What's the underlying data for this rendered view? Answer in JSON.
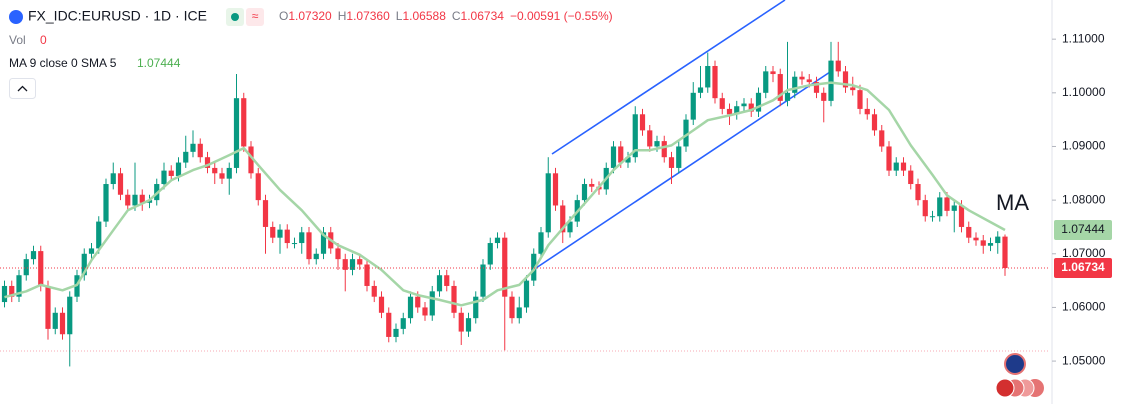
{
  "header": {
    "symbol": "FX_IDC:EURUSD · 1D · ICE",
    "legend": [
      {
        "key": "O",
        "value": "1.07320"
      },
      {
        "key": "H",
        "value": "1.07360"
      },
      {
        "key": "L",
        "value": "1.06588"
      },
      {
        "key": "C",
        "value": "1.06734"
      }
    ],
    "change": "−0.00591 (−0.55%)",
    "vol_label": "Vol",
    "vol_value": "0",
    "ma_label": "MA 9 close 0 SMA 5",
    "ma_value": "1.07444"
  },
  "chart_data": {
    "type": "candlestick",
    "open": [
      1.061,
      1.064,
      1.062,
      1.066,
      1.069,
      1.0705,
      1.064,
      1.056,
      1.059,
      1.055,
      1.062,
      1.066,
      1.07,
      1.071,
      1.076,
      1.083,
      1.085,
      1.081,
      1.079,
      1.081,
      1.0795,
      1.08,
      1.083,
      1.0855,
      1.0845,
      1.087,
      1.089,
      1.0905,
      1.088,
      1.086,
      1.085,
      1.084,
      1.086,
      1.099,
      1.09,
      1.085,
      1.08,
      1.075,
      1.073,
      1.0745,
      1.072,
      1.072,
      1.074,
      1.069,
      1.07,
      1.074,
      1.071,
      1.069,
      1.067,
      1.069,
      1.068,
      1.064,
      1.062,
      1.059,
      1.0545,
      1.056,
      1.058,
      1.062,
      1.06,
      1.0585,
      1.063,
      1.066,
      1.064,
      1.059,
      1.0555,
      1.058,
      1.062,
      1.068,
      1.072,
      1.073,
      1.062,
      1.058,
      1.06,
      1.065,
      1.07,
      1.074,
      1.085,
      1.079,
      1.074,
      1.076,
      1.08,
      1.083,
      1.0825,
      1.082,
      1.086,
      1.09,
      1.087,
      1.088,
      1.096,
      1.093,
      1.09,
      1.091,
      1.088,
      1.086,
      1.09,
      1.095,
      1.1,
      1.101,
      1.105,
      1.099,
      1.097,
      1.096,
      1.0975,
      1.098,
      1.0965,
      1.1,
      1.104,
      1.1035,
      1.0985,
      1.1,
      1.103,
      1.1025,
      1.102,
      1.1,
      1.0985,
      1.106,
      1.104,
      1.101,
      1.1005,
      1.097,
      1.096,
      1.093,
      1.09,
      1.0855,
      1.087,
      1.0855,
      1.083,
      1.08,
      1.077,
      1.077,
      1.0805,
      1.078,
      1.079,
      1.075,
      1.073,
      1.0725,
      1.0715,
      1.072,
      1.0732
    ],
    "high": [
      1.065,
      1.065,
      1.067,
      1.07,
      1.0715,
      1.0715,
      1.065,
      1.06,
      1.06,
      1.063,
      1.067,
      1.071,
      1.072,
      1.077,
      1.084,
      1.087,
      1.086,
      1.082,
      1.087,
      1.082,
      1.081,
      1.084,
      1.087,
      1.0865,
      1.088,
      1.092,
      1.093,
      1.0915,
      1.089,
      1.087,
      1.086,
      1.087,
      1.1035,
      1.1,
      1.091,
      1.086,
      1.081,
      1.076,
      1.0755,
      1.0755,
      1.073,
      1.075,
      1.075,
      1.071,
      1.075,
      1.075,
      1.072,
      1.07,
      1.07,
      1.07,
      1.069,
      1.065,
      1.063,
      1.06,
      1.057,
      1.059,
      1.063,
      1.063,
      1.061,
      1.064,
      1.067,
      1.067,
      1.065,
      1.06,
      1.059,
      1.063,
      1.069,
      1.073,
      1.074,
      1.074,
      1.063,
      1.062,
      1.066,
      1.071,
      1.075,
      1.088,
      1.086,
      1.08,
      1.077,
      1.081,
      1.084,
      1.084,
      1.0835,
      1.087,
      1.091,
      1.091,
      1.089,
      1.0975,
      1.097,
      1.094,
      1.092,
      1.092,
      1.089,
      1.091,
      1.096,
      1.102,
      1.105,
      1.1075,
      1.106,
      1.1,
      1.098,
      1.0985,
      1.099,
      1.099,
      1.101,
      1.105,
      1.105,
      1.1045,
      1.1095,
      1.104,
      1.104,
      1.1035,
      1.103,
      1.101,
      1.1095,
      1.1095,
      1.105,
      1.103,
      1.1015,
      1.099,
      1.097,
      1.094,
      1.091,
      1.088,
      1.088,
      1.0865,
      1.084,
      1.081,
      1.078,
      1.0815,
      1.0815,
      1.08,
      1.08,
      1.076,
      1.074,
      1.0735,
      1.073,
      1.0742,
      1.0736
    ],
    "low": [
      1.06,
      1.061,
      1.061,
      1.065,
      1.068,
      1.063,
      1.054,
      1.055,
      1.054,
      1.049,
      1.061,
      1.065,
      1.069,
      1.07,
      1.075,
      1.082,
      1.08,
      1.078,
      1.078,
      1.078,
      1.0785,
      1.079,
      1.082,
      1.0835,
      1.0835,
      1.086,
      1.088,
      1.087,
      1.085,
      1.083,
      1.083,
      1.081,
      1.085,
      1.089,
      1.084,
      1.079,
      1.07,
      1.072,
      1.07,
      1.071,
      1.071,
      1.07,
      1.068,
      1.068,
      1.069,
      1.07,
      1.067,
      1.063,
      1.066,
      1.067,
      1.063,
      1.061,
      1.058,
      1.0535,
      1.0535,
      1.055,
      1.057,
      1.059,
      1.0575,
      1.0575,
      1.062,
      1.063,
      1.058,
      1.053,
      1.0545,
      1.057,
      1.061,
      1.067,
      1.071,
      1.052,
      1.057,
      1.057,
      1.059,
      1.064,
      1.069,
      1.073,
      1.078,
      1.072,
      1.073,
      1.075,
      1.079,
      1.0815,
      1.081,
      1.081,
      1.085,
      1.086,
      1.086,
      1.087,
      1.092,
      1.089,
      1.089,
      1.087,
      1.083,
      1.085,
      1.089,
      1.094,
      1.099,
      1.1,
      1.098,
      1.096,
      1.094,
      1.095,
      1.0965,
      1.0955,
      1.0955,
      1.099,
      1.102,
      1.0975,
      1.0975,
      1.099,
      1.1015,
      1.101,
      1.099,
      1.0945,
      1.0975,
      1.103,
      1.1,
      1.0995,
      1.096,
      1.095,
      1.092,
      1.089,
      1.0845,
      1.0845,
      1.0845,
      1.082,
      1.079,
      1.076,
      1.076,
      1.076,
      1.077,
      1.074,
      1.074,
      1.072,
      1.0715,
      1.07,
      1.0705,
      1.07,
      1.06588
    ],
    "close": [
      1.064,
      1.062,
      1.066,
      1.069,
      1.0705,
      1.064,
      1.056,
      1.059,
      1.055,
      1.062,
      1.066,
      1.07,
      1.071,
      1.076,
      1.083,
      1.085,
      1.081,
      1.079,
      1.081,
      1.0795,
      1.08,
      1.083,
      1.0855,
      1.0845,
      1.087,
      1.089,
      1.0905,
      1.088,
      1.086,
      1.085,
      1.084,
      1.086,
      1.099,
      1.09,
      1.085,
      1.08,
      1.075,
      1.073,
      1.0745,
      1.072,
      1.072,
      1.074,
      1.069,
      1.07,
      1.074,
      1.071,
      1.069,
      1.067,
      1.069,
      1.068,
      1.064,
      1.062,
      1.059,
      1.0545,
      1.056,
      1.058,
      1.062,
      1.06,
      1.0585,
      1.063,
      1.066,
      1.064,
      1.059,
      1.0555,
      1.058,
      1.062,
      1.068,
      1.072,
      1.073,
      1.062,
      1.058,
      1.06,
      1.065,
      1.07,
      1.074,
      1.085,
      1.079,
      1.074,
      1.076,
      1.08,
      1.083,
      1.0825,
      1.082,
      1.086,
      1.09,
      1.087,
      1.088,
      1.096,
      1.093,
      1.09,
      1.091,
      1.088,
      1.086,
      1.09,
      1.095,
      1.1,
      1.101,
      1.105,
      1.099,
      1.097,
      1.096,
      1.0975,
      1.098,
      1.0965,
      1.1,
      1.104,
      1.1035,
      1.0985,
      1.1,
      1.103,
      1.1025,
      1.102,
      1.1,
      1.0985,
      1.106,
      1.104,
      1.101,
      1.1005,
      1.097,
      1.096,
      1.093,
      1.09,
      1.0855,
      1.087,
      1.0855,
      1.083,
      1.08,
      1.077,
      1.077,
      1.0805,
      1.078,
      1.079,
      1.075,
      1.073,
      1.0725,
      1.0715,
      1.072,
      1.0732,
      1.06734
    ],
    "up_color": "#089981",
    "down_color": "#f23645",
    "ma": {
      "color": "#a5d6a7",
      "x": [
        0,
        3,
        5,
        8,
        10,
        12,
        15,
        17,
        20,
        23,
        26,
        28,
        31,
        33,
        35,
        38,
        41,
        44,
        46,
        49,
        52,
        55,
        57,
        60,
        63,
        66,
        68,
        71,
        73,
        75,
        78,
        81,
        84,
        87,
        89,
        92,
        95,
        97,
        100,
        103,
        106,
        108,
        111,
        114,
        117,
        119,
        122,
        125,
        128,
        130,
        133,
        136,
        138
      ],
      "values": [
        1.0619,
        1.063,
        1.0642,
        1.0632,
        1.0642,
        1.0688,
        1.0744,
        1.0781,
        1.08,
        1.0837,
        1.0856,
        1.0865,
        1.0884,
        1.0897,
        1.0865,
        1.0819,
        1.0781,
        1.0735,
        1.0716,
        1.0698,
        1.067,
        1.0632,
        1.0623,
        1.0614,
        1.0604,
        1.0614,
        1.0632,
        1.0642,
        1.067,
        1.0716,
        1.0763,
        1.0809,
        1.0856,
        1.0893,
        1.0893,
        1.0902,
        1.093,
        1.0949,
        1.0958,
        1.0968,
        1.0986,
        1.1005,
        1.1014,
        1.1019,
        1.1014,
        1.1005,
        1.0968,
        1.0902,
        1.0847,
        1.0809,
        1.0781,
        1.0759,
        1.07444
      ]
    },
    "annotation": "MA",
    "ylim": [
      1.042,
      1.1173
    ],
    "yticks": [
      {
        "value": 1.05,
        "label": "1.05000"
      },
      {
        "value": 1.06,
        "label": "1.06000"
      },
      {
        "value": 1.07,
        "label": "1.07000"
      },
      {
        "value": 1.08,
        "label": "1.08000"
      },
      {
        "value": 1.09,
        "label": "1.09000"
      },
      {
        "value": 1.1,
        "label": "1.10000"
      },
      {
        "value": 1.11,
        "label": "1.11000"
      }
    ],
    "grid": false
  }
}
